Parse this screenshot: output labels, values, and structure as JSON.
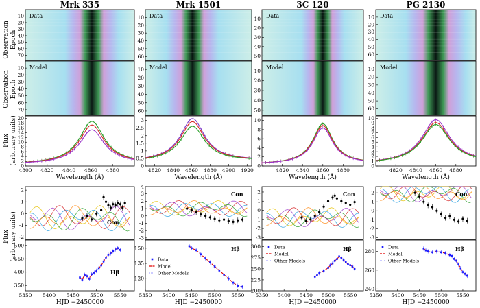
{
  "figure": {
    "panel_label_data": "Data",
    "panel_label_model": "Model",
    "ylabel_epoch": [
      "Observation",
      "Epoch"
    ],
    "ylabel_flux": [
      "Flux",
      "(arbitrary units)"
    ],
    "xlabel_wavelength": "Wavelength (Å)",
    "xlabel_time": "HJD −2450000",
    "label_con": "Con",
    "label_hb": "Hβ",
    "legend": {
      "data": "Data",
      "model": "Model",
      "other": "Other Models"
    },
    "colors": {
      "data": "#1a1aff",
      "model": "#e00000",
      "other": "#7a7aff",
      "lc_data": "#000000"
    }
  },
  "chart_data": [
    {
      "object": "Mrk 335",
      "type": "heatmap",
      "epoch_ticks": [
        10,
        20,
        30,
        40,
        50,
        60,
        70
      ],
      "epoch_max": 78,
      "spectrum": {
        "type": "line",
        "xlim": [
          4800,
          4900
        ],
        "x_ticks": [
          4800,
          4820,
          4840,
          4860,
          4880
        ],
        "ylim": [
          0,
          21
        ],
        "y_ticks": [
          0,
          2,
          4,
          6,
          8,
          10,
          12,
          14,
          16,
          18,
          20
        ],
        "center": 4861,
        "width": 14,
        "series": [
          {
            "color": "#2aa02a",
            "peak": 18.5,
            "base": 0.8
          },
          {
            "color": "#d62728",
            "peak": 17.0,
            "base": 0.8
          },
          {
            "color": "#9a35c9",
            "peak": 15.0,
            "base": 0.8
          }
        ]
      },
      "continuum": {
        "label_pos": "right",
        "ylim": [
          -2.2,
          2.3
        ],
        "y_ticks": [
          -2,
          -1,
          0,
          1,
          2
        ],
        "points": [
          [
            5470,
            -0.4
          ],
          [
            5480,
            -0.2
          ],
          [
            5490,
            -0.5
          ],
          [
            5500,
            0.0
          ],
          [
            5510,
            0.3
          ],
          [
            5515,
            1.4
          ],
          [
            5520,
            1.0
          ],
          [
            5525,
            0.7
          ],
          [
            5530,
            0.5
          ],
          [
            5535,
            0.8
          ],
          [
            5540,
            0.7
          ],
          [
            5545,
            0.9
          ],
          [
            5550,
            0.8
          ],
          [
            5555,
            0.5
          ],
          [
            5560,
            0.9
          ]
        ]
      },
      "hbeta": {
        "ylim": [
          330,
          520
        ],
        "y_ticks": [
          350,
          400,
          450,
          500
        ],
        "points": [
          [
            5465,
            380
          ],
          [
            5470,
            372
          ],
          [
            5475,
            390
          ],
          [
            5480,
            385
          ],
          [
            5485,
            375
          ],
          [
            5490,
            392
          ],
          [
            5495,
            398
          ],
          [
            5500,
            405
          ],
          [
            5505,
            415
          ],
          [
            5510,
            425
          ],
          [
            5515,
            440
          ],
          [
            5520,
            455
          ],
          [
            5525,
            465
          ],
          [
            5530,
            470
          ],
          [
            5535,
            478
          ],
          [
            5540,
            485
          ],
          [
            5545,
            490
          ],
          [
            5550,
            483
          ]
        ]
      }
    },
    {
      "object": "Mrk 1501",
      "type": "heatmap",
      "epoch_ticks": [
        10,
        20,
        30,
        40,
        50,
        60
      ],
      "epoch_max": 65,
      "spectrum": {
        "type": "line",
        "xlim": [
          4810,
          4925
        ],
        "x_ticks": [
          4820,
          4840,
          4860,
          4880,
          4900,
          4920
        ],
        "ylim": [
          0,
          3.3
        ],
        "y_ticks": [
          0,
          0.5,
          1.0,
          1.5,
          2.0,
          2.5,
          3.0
        ],
        "center": 4861,
        "width": 16,
        "series": [
          {
            "color": "#7a35c9",
            "peak": 3.1,
            "base": 0.3
          },
          {
            "color": "#d62728",
            "peak": 2.9,
            "base": 0.3
          },
          {
            "color": "#2aa02a",
            "peak": 2.6,
            "base": 0.3
          }
        ]
      },
      "continuum": {
        "label_pos": "top-right",
        "ylim": [
          -3.2,
          4.0
        ],
        "y_ticks": [
          -3,
          -2,
          -1,
          0,
          1,
          2,
          3,
          4
        ],
        "points": [
          [
            5440,
            1.0
          ],
          [
            5450,
            0.8
          ],
          [
            5460,
            0.5
          ],
          [
            5470,
            0.2
          ],
          [
            5480,
            0.0
          ],
          [
            5490,
            -0.2
          ],
          [
            5500,
            -0.4
          ],
          [
            5510,
            -0.6
          ],
          [
            5520,
            -0.5
          ],
          [
            5530,
            -0.7
          ],
          [
            5540,
            -0.8
          ],
          [
            5550,
            -0.6
          ],
          [
            5560,
            -0.5
          ]
        ]
      },
      "hbeta": {
        "ylim": [
          108,
          158
        ],
        "y_ticks": [
          120,
          135,
          150
        ],
        "points": [
          [
            5445,
            152
          ],
          [
            5450,
            150
          ],
          [
            5460,
            148
          ],
          [
            5470,
            144
          ],
          [
            5480,
            140
          ],
          [
            5490,
            136
          ],
          [
            5500,
            132
          ],
          [
            5510,
            128
          ],
          [
            5520,
            124
          ],
          [
            5530,
            120
          ],
          [
            5540,
            116
          ],
          [
            5550,
            113
          ],
          [
            5560,
            112
          ]
        ]
      }
    },
    {
      "object": "3C 120",
      "type": "heatmap",
      "epoch_ticks": [
        10,
        20,
        30,
        40,
        50
      ],
      "epoch_max": 55,
      "spectrum": {
        "type": "line",
        "xlim": [
          4800,
          4900
        ],
        "x_ticks": [
          4820,
          4840,
          4860,
          4880
        ],
        "ylim": [
          0,
          11
        ],
        "y_ticks": [
          0,
          2,
          4,
          6,
          8,
          10
        ],
        "center": 4860,
        "width": 12,
        "series": [
          {
            "color": "#2aa02a",
            "peak": 9.2,
            "base": 0.4
          },
          {
            "color": "#d62728",
            "peak": 8.8,
            "base": 0.4
          },
          {
            "color": "#9a35c9",
            "peak": 8.3,
            "base": 0.4
          }
        ]
      },
      "continuum": {
        "label_pos": "top-right",
        "ylim": [
          -3.2,
          2.6
        ],
        "y_ticks": [
          -3,
          -2,
          -1,
          0,
          1,
          2
        ],
        "points": [
          [
            5440,
            -0.8
          ],
          [
            5450,
            -1.2
          ],
          [
            5460,
            -1.0
          ],
          [
            5470,
            -0.6
          ],
          [
            5480,
            -0.2
          ],
          [
            5490,
            0.4
          ],
          [
            5500,
            1.0
          ],
          [
            5510,
            1.4
          ],
          [
            5515,
            1.6
          ],
          [
            5520,
            1.3
          ],
          [
            5530,
            1.0
          ],
          [
            5540,
            0.8
          ],
          [
            5550,
            0.6
          ],
          [
            5560,
            0.9
          ]
        ]
      },
      "hbeta": {
        "ylim": [
          200,
          315
        ],
        "y_ticks": [
          200,
          225,
          250,
          275,
          300
        ],
        "points": [
          [
            5470,
            232
          ],
          [
            5475,
            235
          ],
          [
            5480,
            240
          ],
          [
            5490,
            245
          ],
          [
            5500,
            252
          ],
          [
            5505,
            258
          ],
          [
            5510,
            262
          ],
          [
            5515,
            268
          ],
          [
            5520,
            272
          ],
          [
            5525,
            278
          ],
          [
            5530,
            275
          ],
          [
            5535,
            270
          ],
          [
            5540,
            265
          ],
          [
            5545,
            260
          ],
          [
            5550,
            258
          ],
          [
            5555,
            255
          ],
          [
            5560,
            250
          ]
        ]
      }
    },
    {
      "object": "PG 2130",
      "type": "heatmap",
      "epoch_ticks": [
        10,
        20,
        30,
        40,
        50,
        60
      ],
      "epoch_max": 68,
      "spectrum": {
        "type": "line",
        "xlim": [
          4800,
          4900
        ],
        "x_ticks": [
          4820,
          4840,
          4860,
          4880
        ],
        "ylim": [
          0,
          10.5
        ],
        "y_ticks": [
          0,
          1,
          2,
          3,
          4,
          5,
          6,
          7,
          8,
          9,
          10
        ],
        "center": 4860,
        "width": 17,
        "series": [
          {
            "color": "#9a35c9",
            "peak": 9.6,
            "base": 0.5
          },
          {
            "color": "#d62728",
            "peak": 9.0,
            "base": 0.5
          },
          {
            "color": "#2aa02a",
            "peak": 8.6,
            "base": 0.5
          }
        ]
      },
      "continuum": {
        "label_pos": "top-right",
        "ylim": [
          -3.2,
          2.7
        ],
        "y_ticks": [
          -3,
          -2,
          -1,
          0,
          1,
          2
        ],
        "points": [
          [
            5440,
            2.0
          ],
          [
            5450,
            1.6
          ],
          [
            5460,
            1.0
          ],
          [
            5470,
            0.6
          ],
          [
            5480,
            0.4
          ],
          [
            5490,
            0.0
          ],
          [
            5500,
            -0.4
          ],
          [
            5510,
            -0.8
          ],
          [
            5520,
            -0.6
          ],
          [
            5530,
            -1.0
          ],
          [
            5540,
            -1.2
          ],
          [
            5550,
            -0.9
          ],
          [
            5560,
            -1.1
          ]
        ]
      },
      "hbeta": {
        "ylim": [
          238,
          292
        ],
        "y_ticks": [
          240,
          260,
          280
        ],
        "points": [
          [
            5460,
            283
          ],
          [
            5465,
            281
          ],
          [
            5470,
            280
          ],
          [
            5480,
            279
          ],
          [
            5490,
            280
          ],
          [
            5500,
            279
          ],
          [
            5510,
            278
          ],
          [
            5520,
            276
          ],
          [
            5525,
            275
          ],
          [
            5530,
            272
          ],
          [
            5535,
            270
          ],
          [
            5540,
            266
          ],
          [
            5545,
            262
          ],
          [
            5550,
            258
          ],
          [
            5555,
            256
          ],
          [
            5560,
            254
          ]
        ]
      }
    }
  ],
  "time_axis": {
    "xlim": [
      5350,
      5580
    ],
    "x_ticks": [
      5350,
      5400,
      5450,
      5500,
      5550
    ]
  }
}
